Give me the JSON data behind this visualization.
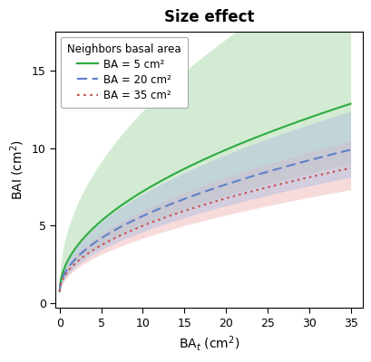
{
  "title": "Size effect",
  "xlabel": "BA$_t$ (cm$^2$)",
  "ylabel": "BAI (cm$^2$)",
  "xlim": [
    -0.5,
    36.5
  ],
  "ylim": [
    -0.3,
    17.5
  ],
  "xticks": [
    0,
    5,
    10,
    15,
    20,
    25,
    30,
    35
  ],
  "yticks": [
    0,
    5,
    10,
    15
  ],
  "legend_title": "Neighbors basal area",
  "legend_labels": [
    "BA = 5 cm²",
    "BA = 20 cm²",
    "BA = 35 cm²"
  ],
  "line_colors": [
    "#2eab42",
    "#6080c8",
    "#c85050"
  ],
  "fill_colors": [
    "#a8d8a8",
    "#b0c0e0",
    "#f0b8b8"
  ],
  "line_styles": [
    "solid",
    "dashed",
    "dotted"
  ],
  "alpha_fill": 0.5,
  "background_color": "#ffffff",
  "scale_green": 2.05,
  "scale_blue": 1.55,
  "scale_red": 1.35,
  "power_all": 0.5,
  "intercept": 0.72,
  "spread_green_lo": 0.3,
  "spread_green_hi": 0.72,
  "spread_blue_lo": 0.18,
  "spread_blue_hi": 0.25,
  "spread_red_lo": 0.16,
  "spread_red_hi": 0.2
}
